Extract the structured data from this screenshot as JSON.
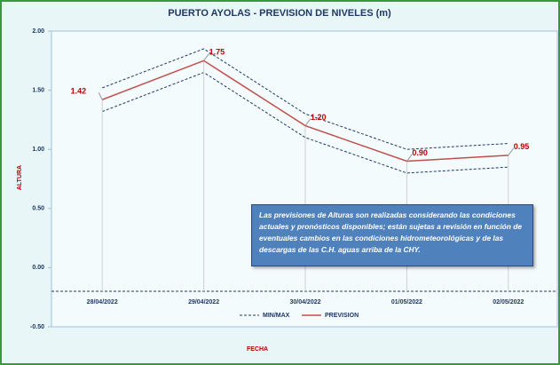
{
  "chart_data": {
    "type": "line",
    "title": "PUERTO AYOLAS - PREVISION DE NIVELES (m)",
    "y_label": "ALTURA",
    "x_label": "FECHA",
    "categories": [
      "28/04/2022",
      "29/04/2022",
      "30/04/2022",
      "01/05/2022",
      "02/05/2022"
    ],
    "ylim": [
      -0.5,
      2.0
    ],
    "yticks": [
      {
        "value": -0.5,
        "label": "-0.50"
      },
      {
        "value": 0,
        "label": "0.00"
      },
      {
        "value": 0.5,
        "label": "0.50"
      },
      {
        "value": 1.0,
        "label": "1.00"
      },
      {
        "value": 1.5,
        "label": "1.50"
      },
      {
        "value": 2.0,
        "label": "2.00"
      }
    ],
    "grid": true,
    "series": [
      {
        "name": "MIN/MAX",
        "color": "#1f3864",
        "dashed": true,
        "max": [
          1.52,
          1.85,
          1.3,
          1.0,
          1.05
        ],
        "min": [
          1.32,
          1.65,
          1.1,
          0.8,
          0.85
        ]
      },
      {
        "name": "PREVISION",
        "color": "#c0504d",
        "values": [
          1.42,
          1.75,
          1.2,
          0.9,
          0.95
        ],
        "value_labels": [
          "1.42",
          "1.75",
          "1.20",
          "0.90",
          "0.95"
        ]
      }
    ],
    "note": "Las previsiones de Alturas son realizadas considerando las condiciones actuales y pronósticos disponibles;  están sujetas a revisión en función de eventuales cambios en las condiciones hidrometeorológicas y de las descargas de las C.H. aguas arriba de la CHY."
  }
}
